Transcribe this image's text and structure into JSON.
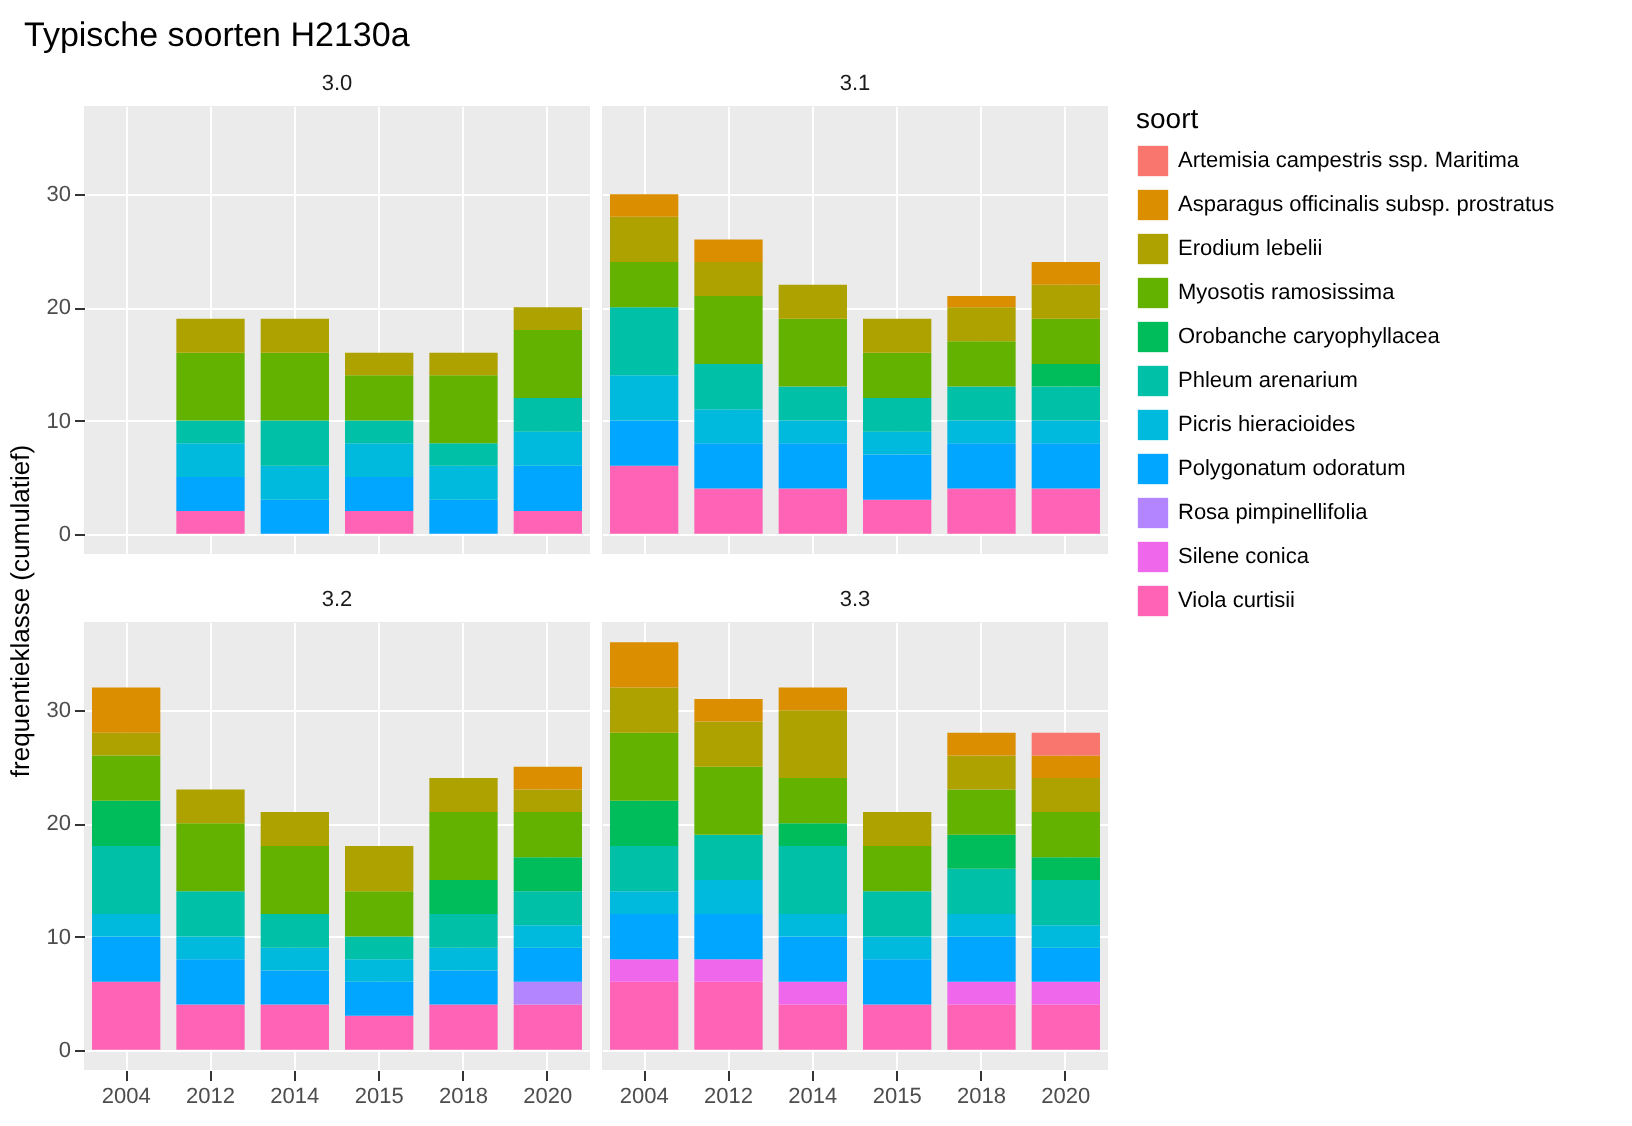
{
  "chart_data": [
    {
      "type": "bar",
      "title": "3.0",
      "annotations": [
        "Typische soorten H2130a"
      ],
      "ylabel": "frequentieklasse (cumulatief)",
      "stacked": true,
      "grid": true,
      "tick_labels": "y",
      "categories": [
        "2004",
        "2012",
        "2014",
        "2015",
        "2018",
        "2020"
      ],
      "ylim": [
        -1.8,
        37.8
      ],
      "yticks": [
        0,
        10,
        20,
        30
      ],
      "series": [
        {
          "color": "#ff63b6",
          "values": [
            null,
            2,
            null,
            2,
            null,
            2
          ]
        },
        {
          "color": "#ef67eb",
          "values": [
            null,
            null,
            null,
            null,
            null,
            null
          ]
        },
        {
          "color": "#b385ff",
          "values": [
            null,
            null,
            null,
            null,
            null,
            null
          ]
        },
        {
          "color": "#00a6ff",
          "values": [
            null,
            3,
            3,
            3,
            3,
            4
          ]
        },
        {
          "color": "#00bade",
          "values": [
            null,
            3,
            3,
            3,
            3,
            3
          ]
        },
        {
          "color": "#00c1a7",
          "values": [
            null,
            2,
            4,
            2,
            2,
            3
          ]
        },
        {
          "color": "#00bd5c",
          "values": [
            null,
            null,
            null,
            null,
            null,
            null
          ]
        },
        {
          "color": "#64b200",
          "values": [
            null,
            6,
            6,
            4,
            6,
            6
          ]
        },
        {
          "color": "#aea200",
          "values": [
            null,
            3,
            3,
            2,
            2,
            2
          ]
        },
        {
          "color": "#db8e00",
          "values": [
            null,
            null,
            null,
            null,
            null,
            null
          ]
        },
        {
          "color": "#f8766d",
          "values": [
            null,
            null,
            null,
            null,
            null,
            null
          ]
        }
      ]
    },
    {
      "type": "bar",
      "title": "3.1",
      "legend_title": "soort",
      "legend": "right",
      "stacked": true,
      "grid": true,
      "tick_labels": false,
      "categories": [
        "2004",
        "2012",
        "2014",
        "2015",
        "2018",
        "2020"
      ],
      "ylim": [
        -1.8,
        37.8
      ],
      "yticks": [
        0,
        10,
        20,
        30
      ],
      "series": [
        {
          "name": "Viola curtisii",
          "color": "#ff63b6",
          "values": [
            6,
            4,
            4,
            3,
            4,
            4
          ]
        },
        {
          "name": "Silene conica",
          "color": "#ef67eb",
          "values": [
            null,
            null,
            null,
            null,
            null,
            null
          ]
        },
        {
          "name": "Rosa pimpinellifolia",
          "color": "#b385ff",
          "values": [
            null,
            null,
            null,
            null,
            null,
            null
          ]
        },
        {
          "name": "Polygonatum odoratum",
          "color": "#00a6ff",
          "values": [
            4,
            4,
            4,
            4,
            4,
            4
          ]
        },
        {
          "name": "Picris hieracioides",
          "color": "#00bade",
          "values": [
            4,
            3,
            2,
            2,
            2,
            2
          ]
        },
        {
          "name": "Phleum arenarium",
          "color": "#00c1a7",
          "values": [
            6,
            4,
            3,
            3,
            3,
            3
          ]
        },
        {
          "name": "Orobanche caryophyllacea",
          "color": "#00bd5c",
          "values": [
            null,
            null,
            null,
            null,
            null,
            2
          ]
        },
        {
          "name": "Myosotis ramosissima",
          "color": "#64b200",
          "values": [
            4,
            6,
            6,
            4,
            4,
            4
          ]
        },
        {
          "name": "Erodium lebelii",
          "color": "#aea200",
          "values": [
            4,
            3,
            3,
            3,
            3,
            3
          ]
        },
        {
          "name": "Asparagus officinalis subsp. prostratus",
          "color": "#db8e00",
          "values": [
            2,
            2,
            null,
            null,
            1,
            2
          ]
        },
        {
          "name": "Artemisia campestris ssp. Maritima",
          "color": "#f8766d",
          "values": [
            null,
            null,
            null,
            null,
            null,
            null
          ]
        }
      ]
    },
    {
      "type": "bar",
      "title": "3.2",
      "stacked": true,
      "grid": true,
      "categories": [
        "2004",
        "2012",
        "2014",
        "2015",
        "2018",
        "2020"
      ],
      "ylim": [
        -1.8,
        37.8
      ],
      "yticks": [
        0,
        10,
        20,
        30
      ],
      "series": [
        {
          "color": "#ff63b6",
          "values": [
            6,
            4,
            4,
            3,
            4,
            4
          ]
        },
        {
          "color": "#ef67eb",
          "values": [
            null,
            null,
            null,
            null,
            null,
            null
          ]
        },
        {
          "color": "#b385ff",
          "values": [
            null,
            null,
            null,
            null,
            null,
            2
          ]
        },
        {
          "color": "#00a6ff",
          "values": [
            4,
            4,
            3,
            3,
            3,
            3
          ]
        },
        {
          "color": "#00bade",
          "values": [
            2,
            2,
            2,
            2,
            2,
            2
          ]
        },
        {
          "color": "#00c1a7",
          "values": [
            6,
            4,
            3,
            2,
            3,
            3
          ]
        },
        {
          "color": "#00bd5c",
          "values": [
            4,
            null,
            null,
            null,
            3,
            3
          ]
        },
        {
          "color": "#64b200",
          "values": [
            4,
            6,
            6,
            4,
            6,
            4
          ]
        },
        {
          "color": "#aea200",
          "values": [
            2,
            3,
            3,
            4,
            3,
            2
          ]
        },
        {
          "color": "#db8e00",
          "values": [
            4,
            null,
            null,
            null,
            null,
            2
          ]
        },
        {
          "color": "#f8766d",
          "values": [
            null,
            null,
            null,
            null,
            null,
            null
          ]
        }
      ]
    },
    {
      "type": "bar",
      "title": "3.3",
      "stacked": true,
      "grid": true,
      "tick_labels": "x",
      "categories": [
        "2004",
        "2012",
        "2014",
        "2015",
        "2018",
        "2020"
      ],
      "ylim": [
        -1.8,
        37.8
      ],
      "yticks": [
        0,
        10,
        20,
        30
      ],
      "series": [
        {
          "color": "#ff63b6",
          "values": [
            6,
            6,
            4,
            4,
            4,
            4
          ]
        },
        {
          "color": "#ef67eb",
          "values": [
            2,
            2,
            2,
            null,
            2,
            2
          ]
        },
        {
          "color": "#b385ff",
          "values": [
            null,
            null,
            null,
            null,
            null,
            null
          ]
        },
        {
          "color": "#00a6ff",
          "values": [
            4,
            4,
            4,
            4,
            4,
            3
          ]
        },
        {
          "color": "#00bade",
          "values": [
            2,
            3,
            2,
            2,
            2,
            2
          ]
        },
        {
          "color": "#00c1a7",
          "values": [
            4,
            4,
            6,
            4,
            4,
            4
          ]
        },
        {
          "color": "#00bd5c",
          "values": [
            4,
            null,
            2,
            null,
            3,
            2
          ]
        },
        {
          "color": "#64b200",
          "values": [
            6,
            6,
            4,
            4,
            4,
            4
          ]
        },
        {
          "color": "#aea200",
          "values": [
            4,
            4,
            6,
            3,
            3,
            3
          ]
        },
        {
          "color": "#db8e00",
          "values": [
            4,
            2,
            2,
            null,
            2,
            2
          ]
        },
        {
          "color": "#f8766d",
          "values": [
            null,
            null,
            null,
            null,
            null,
            2
          ]
        }
      ]
    }
  ]
}
